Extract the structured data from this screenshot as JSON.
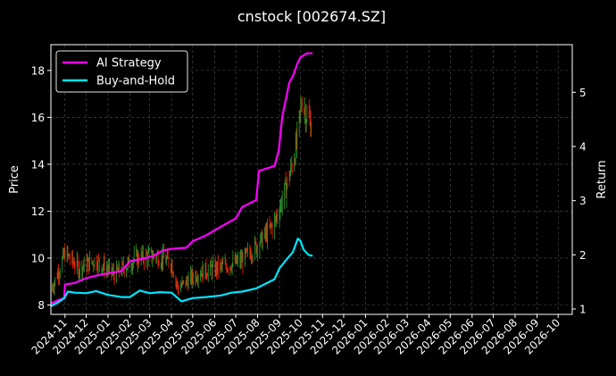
{
  "chart_data": {
    "type": "line",
    "title": "cnstock [002674.SZ]",
    "ylabel": "Price",
    "y2label": "Return",
    "ylim": [
      7.6,
      19.1
    ],
    "y2lim": [
      0.9,
      5.88
    ],
    "yticks": [
      "8",
      "10",
      "12",
      "14",
      "16",
      "18"
    ],
    "y2ticks": [
      "1",
      "2",
      "3",
      "4",
      "5"
    ],
    "xticks": [
      "2024-11",
      "2024-12",
      "2025-01",
      "2025-02",
      "2025-03",
      "2025-04",
      "2025-05",
      "2025-06",
      "2025-07",
      "2025-08",
      "2025-09",
      "2025-10",
      "2025-11",
      "2025-12",
      "2026-01",
      "2026-02",
      "2026-03",
      "2026-04",
      "2026-05",
      "2026-06",
      "2026-07",
      "2026-08",
      "2026-09",
      "2026-10"
    ],
    "xlim": [
      "2024-10-12",
      "2026-10-21"
    ],
    "grid": true,
    "legend_position": "top-left",
    "legend": [
      "AI Strategy",
      "Buy-and-Hold"
    ],
    "colors": {
      "ai_strategy": "#ff00ff",
      "buy_and_hold": "#00e5ff",
      "up": "#2ca02c",
      "down": "#ff2200",
      "grid": "#555555"
    },
    "series": [
      {
        "name": "AI Strategy",
        "axis": "right",
        "points": [
          [
            "2024-10-12",
            1.1
          ],
          [
            "2024-10-22",
            1.16
          ],
          [
            "2024-10-31",
            1.2
          ],
          [
            "2024-11-01",
            1.45
          ],
          [
            "2024-11-15",
            1.48
          ],
          [
            "2024-12-01",
            1.57
          ],
          [
            "2024-12-20",
            1.63
          ],
          [
            "2025-01-02",
            1.66
          ],
          [
            "2025-01-20",
            1.7
          ],
          [
            "2025-02-01",
            1.88
          ],
          [
            "2025-02-20",
            1.93
          ],
          [
            "2025-03-05",
            1.97
          ],
          [
            "2025-03-20",
            2.08
          ],
          [
            "2025-04-01",
            2.11
          ],
          [
            "2025-04-22",
            2.13
          ],
          [
            "2025-05-01",
            2.25
          ],
          [
            "2025-05-20",
            2.36
          ],
          [
            "2025-06-10",
            2.52
          ],
          [
            "2025-06-25",
            2.63
          ],
          [
            "2025-07-01",
            2.67
          ],
          [
            "2025-07-10",
            2.88
          ],
          [
            "2025-07-30",
            3.01
          ],
          [
            "2025-08-03",
            3.55
          ],
          [
            "2025-08-15",
            3.6
          ],
          [
            "2025-08-25",
            3.64
          ],
          [
            "2025-08-31",
            3.93
          ],
          [
            "2025-09-05",
            4.55
          ],
          [
            "2025-09-15",
            5.18
          ],
          [
            "2025-09-20",
            5.3
          ],
          [
            "2025-09-27",
            5.55
          ],
          [
            "2025-10-01",
            5.65
          ],
          [
            "2025-10-10",
            5.72
          ],
          [
            "2025-10-18",
            5.72
          ]
        ]
      },
      {
        "name": "Buy-and-Hold",
        "axis": "right",
        "points": [
          [
            "2024-10-12",
            1.05
          ],
          [
            "2024-10-22",
            1.12
          ],
          [
            "2024-10-31",
            1.2
          ],
          [
            "2024-11-05",
            1.32
          ],
          [
            "2024-11-15",
            1.3
          ],
          [
            "2024-12-01",
            1.29
          ],
          [
            "2024-12-15",
            1.33
          ],
          [
            "2025-01-01",
            1.26
          ],
          [
            "2025-01-20",
            1.22
          ],
          [
            "2025-02-01",
            1.22
          ],
          [
            "2025-02-15",
            1.34
          ],
          [
            "2025-03-01",
            1.29
          ],
          [
            "2025-03-15",
            1.31
          ],
          [
            "2025-04-01",
            1.3
          ],
          [
            "2025-04-10",
            1.2
          ],
          [
            "2025-04-15",
            1.14
          ],
          [
            "2025-05-01",
            1.2
          ],
          [
            "2025-05-20",
            1.22
          ],
          [
            "2025-06-10",
            1.25
          ],
          [
            "2025-06-25",
            1.3
          ],
          [
            "2025-07-10",
            1.32
          ],
          [
            "2025-07-30",
            1.38
          ],
          [
            "2025-08-10",
            1.45
          ],
          [
            "2025-08-25",
            1.55
          ],
          [
            "2025-09-01",
            1.75
          ],
          [
            "2025-09-10",
            1.9
          ],
          [
            "2025-09-20",
            2.05
          ],
          [
            "2025-09-27",
            2.3
          ],
          [
            "2025-10-01",
            2.25
          ],
          [
            "2025-10-05",
            2.1
          ],
          [
            "2025-10-12",
            2.0
          ],
          [
            "2025-10-18",
            1.98
          ]
        ]
      }
    ],
    "price_candles": {
      "axis": "left",
      "note_points": [
        [
          "2024-10-12",
          8.6
        ],
        [
          "2024-11-01",
          10.2
        ],
        [
          "2024-11-20",
          9.6
        ],
        [
          "2024-12-15",
          9.9
        ],
        [
          "2025-01-10",
          9.3
        ],
        [
          "2025-02-10",
          10.0
        ],
        [
          "2025-03-10",
          10.1
        ],
        [
          "2025-04-01",
          9.8
        ],
        [
          "2025-04-10",
          8.7
        ],
        [
          "2025-05-10",
          9.4
        ],
        [
          "2025-06-10",
          9.6
        ],
        [
          "2025-07-10",
          9.9
        ],
        [
          "2025-08-05",
          10.7
        ],
        [
          "2025-08-25",
          11.5
        ],
        [
          "2025-09-05",
          12.5
        ],
        [
          "2025-09-15",
          13.5
        ],
        [
          "2025-09-25",
          14.8
        ],
        [
          "2025-10-03",
          16.8
        ],
        [
          "2025-10-08",
          16.2
        ],
        [
          "2025-10-16",
          15.7
        ]
      ]
    }
  }
}
